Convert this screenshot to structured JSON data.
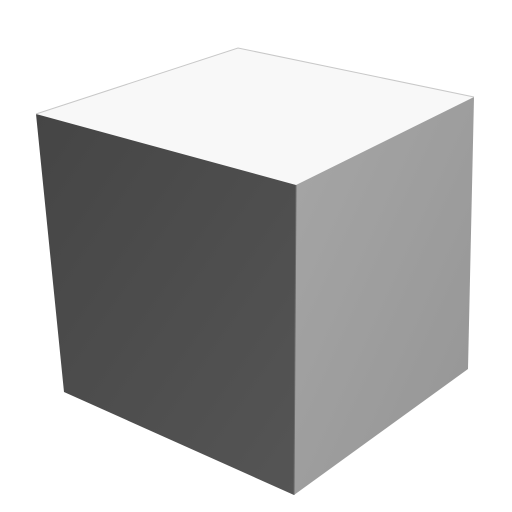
{
  "scene": {
    "subject": "cube",
    "background_color": "#ffffff",
    "faces": {
      "top": {
        "color": "#f8f8f8",
        "edge_color": "#c8c8c8"
      },
      "front": {
        "color": "#4d4d4d",
        "shade_light": "#555555",
        "shade_dark": "#454545"
      },
      "right": {
        "color": "#9e9e9e",
        "shade_light": "#a6a6a6",
        "shade_dark": "#959595"
      }
    }
  }
}
